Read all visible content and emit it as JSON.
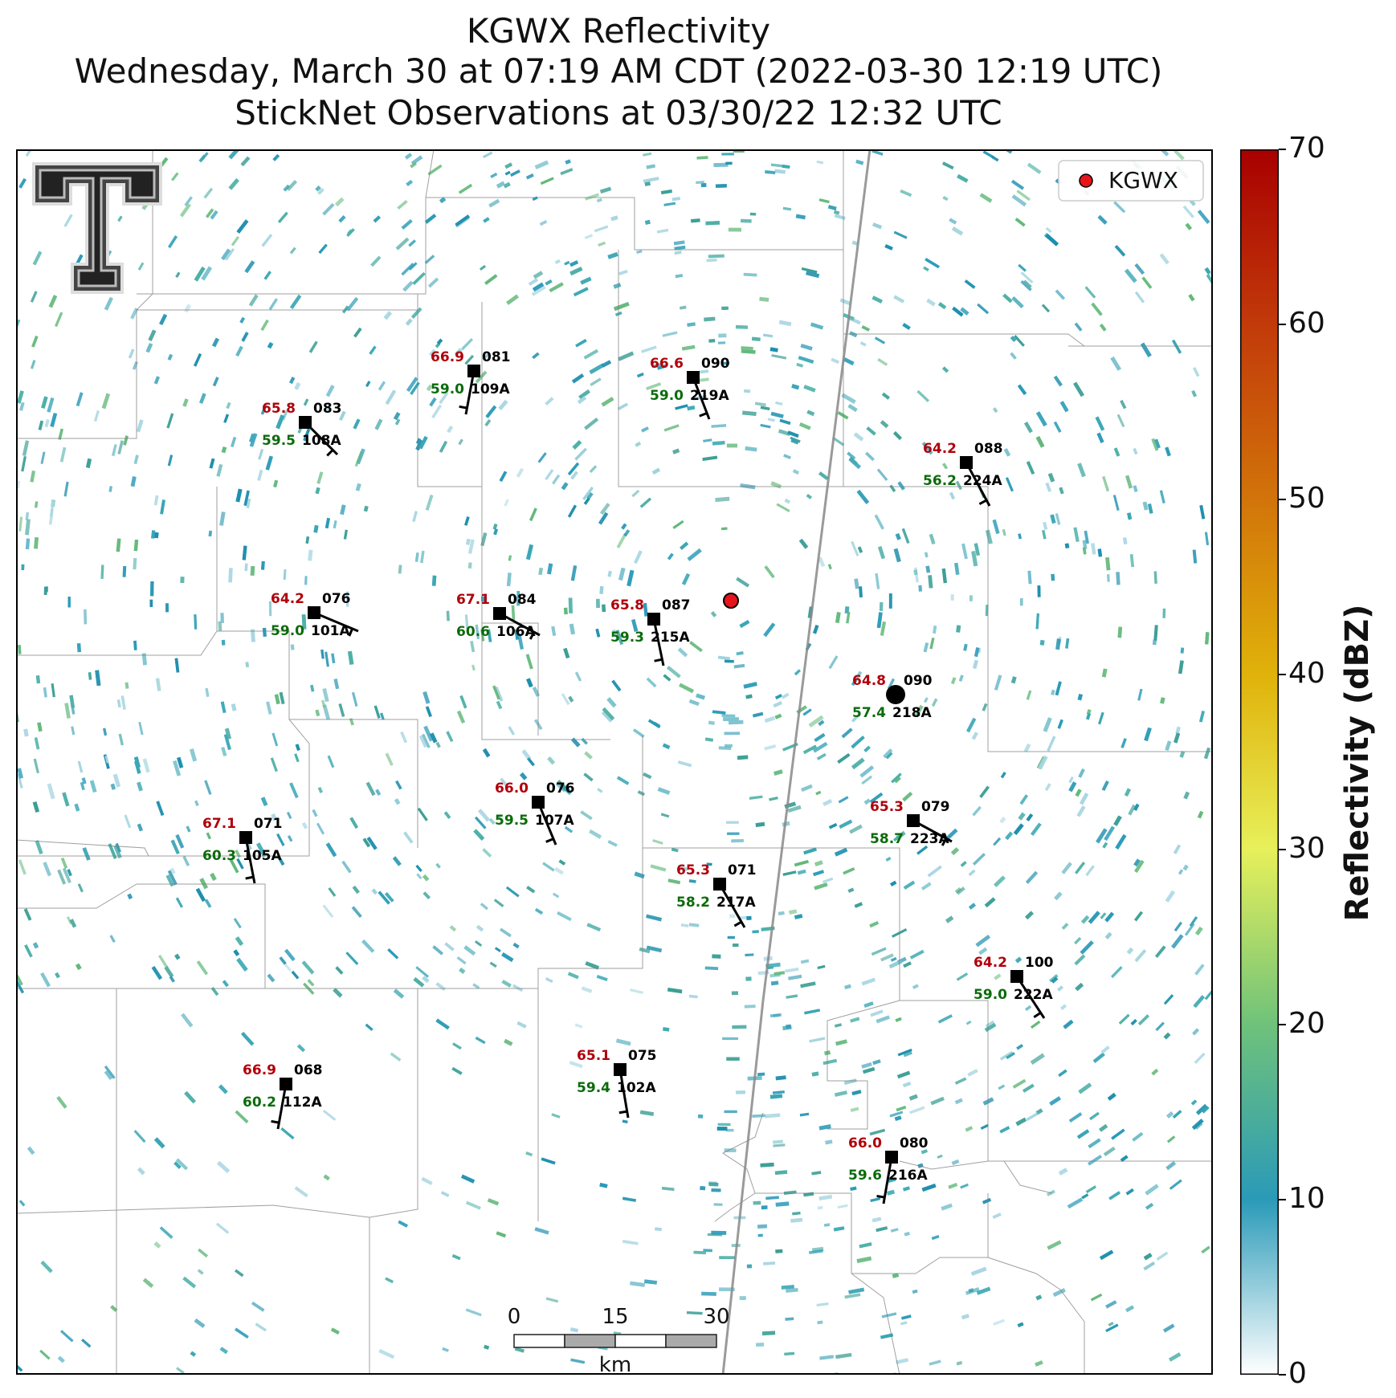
{
  "title": {
    "line1": "KGWX Reflectivity",
    "line2": "Wednesday, March 30 at 07:19 AM CDT (2022-03-30 12:19 UTC)",
    "line3": "StickNet Observations at 03/30/22 12:32 UTC"
  },
  "legend": {
    "label": "KGWX",
    "marker_color": "#e8141b"
  },
  "colorbar": {
    "label": "Reflectivity (dBZ)",
    "ticks": [
      "0",
      "10",
      "20",
      "30",
      "40",
      "50",
      "60",
      "70"
    ],
    "colors": [
      "#ffffff",
      "#2a9ab8",
      "#6fc27a",
      "#e7f05a",
      "#e0b20a",
      "#d2740a",
      "#c23a0a",
      "#a80000"
    ]
  },
  "scalebar": {
    "labels": [
      "0",
      "15",
      "30"
    ],
    "unit": "km"
  },
  "stations": [
    {
      "id": "109A",
      "temp": "66.9",
      "dew": "59.0",
      "dir": "081"
    },
    {
      "id": "219A",
      "temp": "66.6",
      "dew": "59.0",
      "dir": "090"
    },
    {
      "id": "108A",
      "temp": "65.8",
      "dew": "59.5",
      "dir": "083"
    },
    {
      "id": "224A",
      "temp": "64.2",
      "dew": "56.2",
      "dir": "088"
    },
    {
      "id": "101A",
      "temp": "64.2",
      "dew": "59.0",
      "dir": "076"
    },
    {
      "id": "106A",
      "temp": "67.1",
      "dew": "60.6",
      "dir": "084"
    },
    {
      "id": "215A",
      "temp": "65.8",
      "dew": "59.3",
      "dir": "087"
    },
    {
      "id": "218A",
      "temp": "64.8",
      "dew": "57.4",
      "dir": "090"
    },
    {
      "id": "107A",
      "temp": "66.0",
      "dew": "59.5",
      "dir": "076"
    },
    {
      "id": "105A",
      "temp": "67.1",
      "dew": "60.3",
      "dir": "071"
    },
    {
      "id": "223A",
      "temp": "65.3",
      "dew": "58.7",
      "dir": "079"
    },
    {
      "id": "217A",
      "temp": "65.3",
      "dew": "58.2",
      "dir": "071"
    },
    {
      "id": "222A",
      "temp": "64.2",
      "dew": "59.0",
      "dir": "100"
    },
    {
      "id": "102A",
      "temp": "65.1",
      "dew": "59.4",
      "dir": "075"
    },
    {
      "id": "112A",
      "temp": "66.9",
      "dew": "60.2",
      "dir": "068"
    },
    {
      "id": "216A",
      "temp": "66.0",
      "dew": "59.6",
      "dir": "080"
    }
  ]
}
